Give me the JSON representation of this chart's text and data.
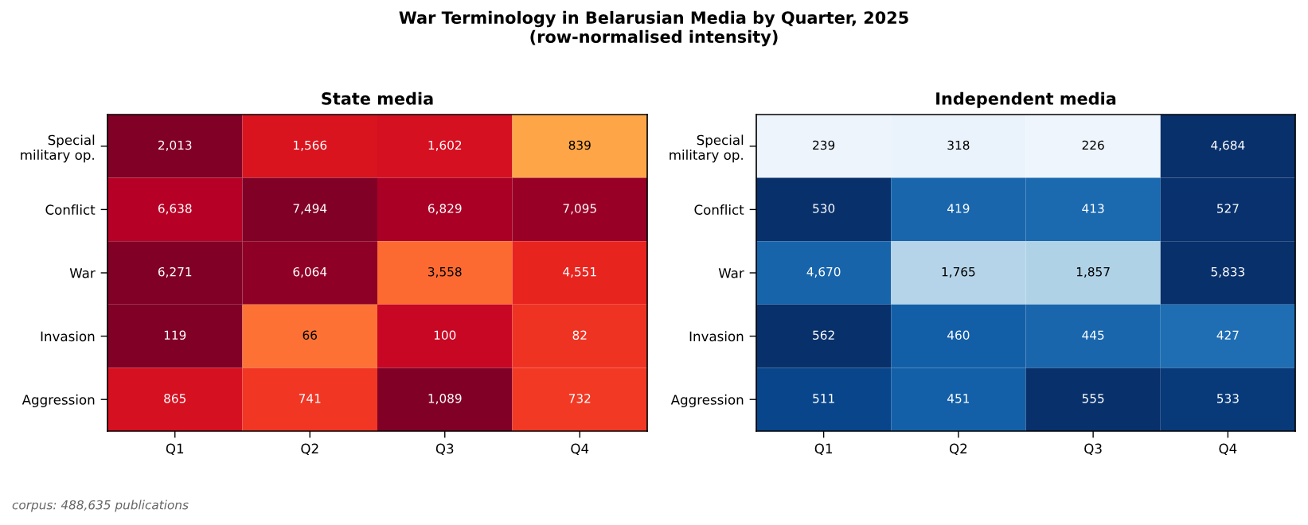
{
  "chart_data": [
    {
      "type": "other",
      "title": "War Terminology in Belarusian Media by Quarter, 2025",
      "subtitle": "(row-normalised intensity)",
      "annotations": [
        "corpus: 488,635 publications"
      ]
    },
    {
      "type": "heatmap",
      "title": "State media",
      "categories": [
        "Q1",
        "Q2",
        "Q3",
        "Q4"
      ],
      "y_categories": [
        "Special\nmilitary op.",
        "Conflict",
        "War",
        "Invasion",
        "Aggression"
      ],
      "cells": [
        [
          2013,
          1566,
          1602,
          839
        ],
        [
          6638,
          7494,
          6829,
          7095
        ],
        [
          6271,
          6064,
          3558,
          4551
        ],
        [
          119,
          66,
          100,
          82
        ],
        [
          865,
          741,
          1089,
          732
        ]
      ],
      "cell_labels": [
        [
          "2,013",
          "1,566",
          "1,602",
          "839"
        ],
        [
          "6,638",
          "7,494",
          "6,829",
          "7,095"
        ],
        [
          "6,271",
          "6,064",
          "3,558",
          "4,551"
        ],
        [
          "119",
          "66",
          "100",
          "82"
        ],
        [
          "865",
          "741",
          "1,089",
          "732"
        ]
      ],
      "colors": [
        "#ffffcc",
        "#ffeda0",
        "#fed976",
        "#feb24c",
        "#fd8d3c",
        "#fc4e2a",
        "#e31a1c",
        "#bd0026",
        "#800026"
      ]
    },
    {
      "type": "heatmap",
      "title": "Independent media",
      "categories": [
        "Q1",
        "Q2",
        "Q3",
        "Q4"
      ],
      "y_categories": [
        "Special\nmilitary op.",
        "Conflict",
        "War",
        "Invasion",
        "Aggression"
      ],
      "cells": [
        [
          239,
          318,
          226,
          4684
        ],
        [
          530,
          419,
          413,
          527
        ],
        [
          4670,
          1765,
          1857,
          5833
        ],
        [
          562,
          460,
          445,
          427
        ],
        [
          511,
          451,
          555,
          533
        ]
      ],
      "cell_labels": [
        [
          "239",
          "318",
          "226",
          "4,684"
        ],
        [
          "530",
          "419",
          "413",
          "527"
        ],
        [
          "4,670",
          "1,765",
          "1,857",
          "5,833"
        ],
        [
          "562",
          "460",
          "445",
          "427"
        ],
        [
          "511",
          "451",
          "555",
          "533"
        ]
      ],
      "colors": [
        "#f7fbff",
        "#deebf7",
        "#c6dbef",
        "#9ecae1",
        "#6baed6",
        "#4292c6",
        "#2171b5",
        "#08519c",
        "#08306b"
      ]
    }
  ]
}
